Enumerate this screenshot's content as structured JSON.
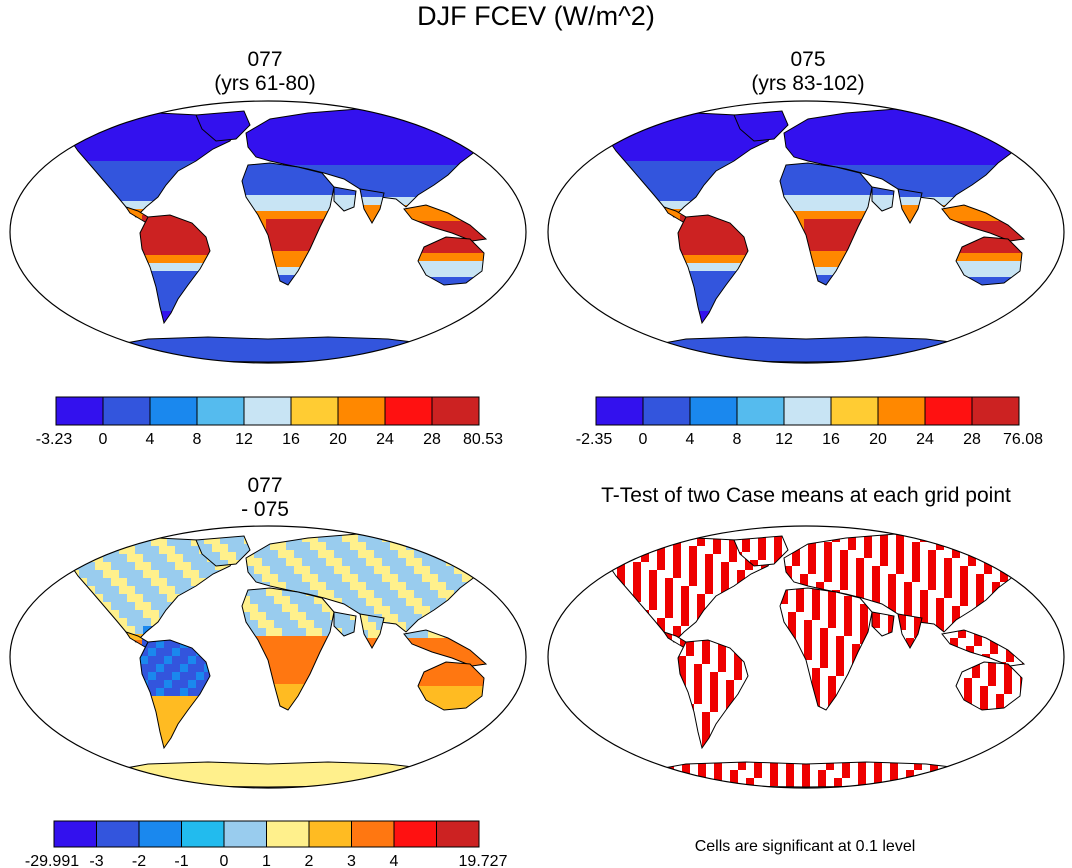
{
  "title": "DJF FCEV (W/m^2)",
  "colors": {
    "map_scale": [
      "#3311ee",
      "#3355dd",
      "#1a88ee",
      "#55bbee",
      "#c8e4f4",
      "#ffcc33",
      "#ff8800",
      "#ff1111",
      "#cc2222"
    ],
    "diff_scale": [
      "#3311ee",
      "#3355dd",
      "#1a88ee",
      "#22bbee",
      "#99ccee",
      "#fff08c",
      "#ffbb22",
      "#ff7711",
      "#ff1111",
      "#cc2222"
    ],
    "significant": "#ee0000",
    "ocean": "#ffffff"
  },
  "panels": [
    {
      "id": "case1",
      "title_line1": "077",
      "title_line2": "(yrs 61-80)",
      "colorbar_labels": [
        "-3.23",
        "0",
        "4",
        "8",
        "12",
        "16",
        "20",
        "24",
        "28",
        "80.53"
      ]
    },
    {
      "id": "case2",
      "title_line1": "075",
      "title_line2": "(yrs 83-102)",
      "colorbar_labels": [
        "-2.35",
        "0",
        "4",
        "8",
        "12",
        "16",
        "20",
        "24",
        "28",
        "76.08"
      ]
    },
    {
      "id": "diff",
      "title_line1": "077",
      "title_line2": "- 075",
      "colorbar_labels": [
        "-29.991",
        "-3",
        "-2",
        "-1",
        "0",
        "1",
        "2",
        "3",
        "4",
        "19.727"
      ]
    },
    {
      "id": "ttest",
      "title_line1": "T-Test of two Case means at each grid point",
      "note": "Cells are significant at 0.1 level"
    }
  ]
}
